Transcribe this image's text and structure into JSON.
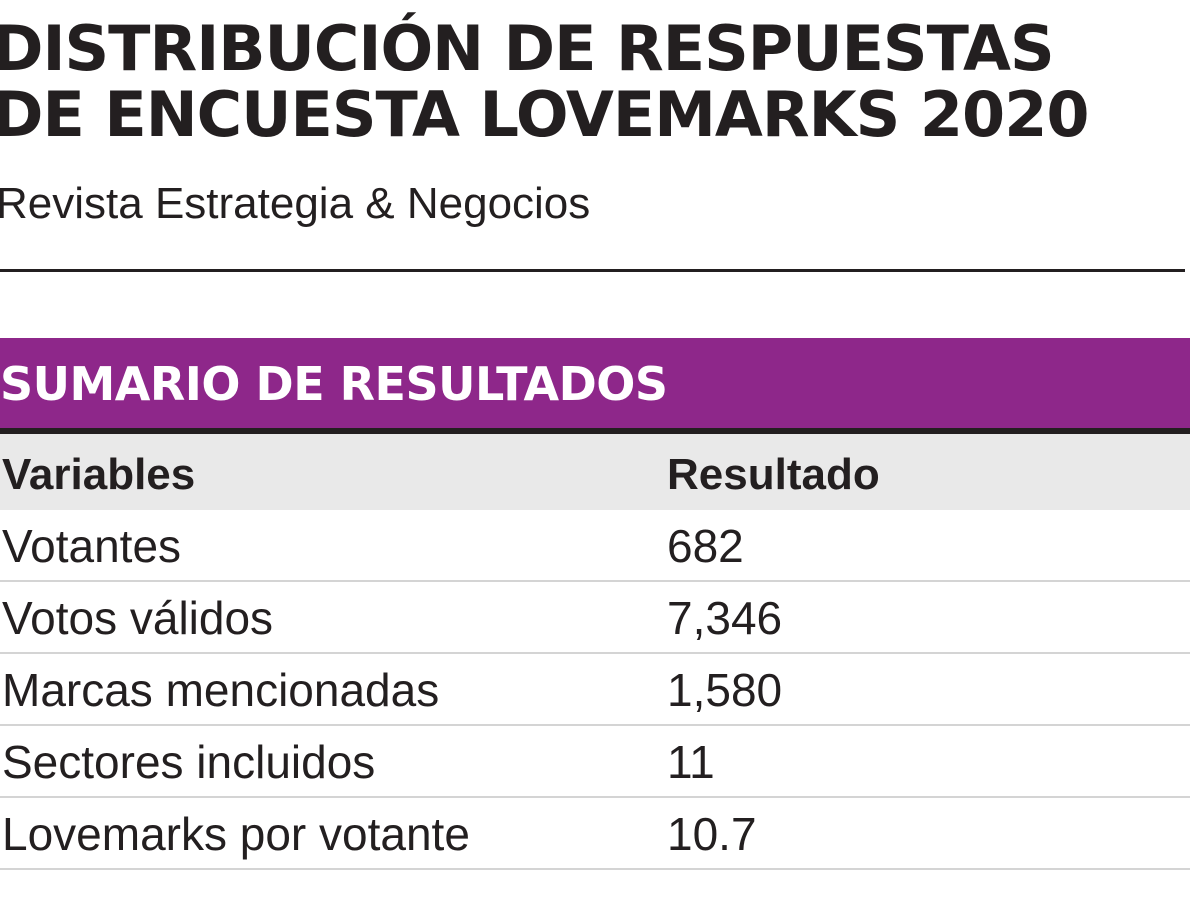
{
  "title": {
    "line1": "DISTRIBUCIÓN DE RESPUESTAS",
    "line2": "DE ENCUESTA LOVEMARKS 2020"
  },
  "subtitle": "Revista Estrategia & Negocios",
  "section_label": "SUMARIO DE RESULTADOS",
  "colors": {
    "band": "#8e278a",
    "header_bg": "#e9e9e9",
    "text": "#231f20"
  },
  "chart_data": {
    "type": "table",
    "title": "DISTRIBUCIÓN DE RESPUESTAS DE ENCUESTA LOVEMARKS 2020",
    "subtitle": "Revista Estrategia & Negocios",
    "section": "SUMARIO DE RESULTADOS",
    "columns": [
      "Variables",
      "Resultado"
    ],
    "rows": [
      [
        "Votantes",
        "682"
      ],
      [
        "Votos válidos",
        "7,346"
      ],
      [
        "Marcas mencionadas",
        "1,580"
      ],
      [
        "Sectores incluidos",
        "11"
      ],
      [
        "Lovemarks por votante",
        "10.7"
      ]
    ]
  }
}
